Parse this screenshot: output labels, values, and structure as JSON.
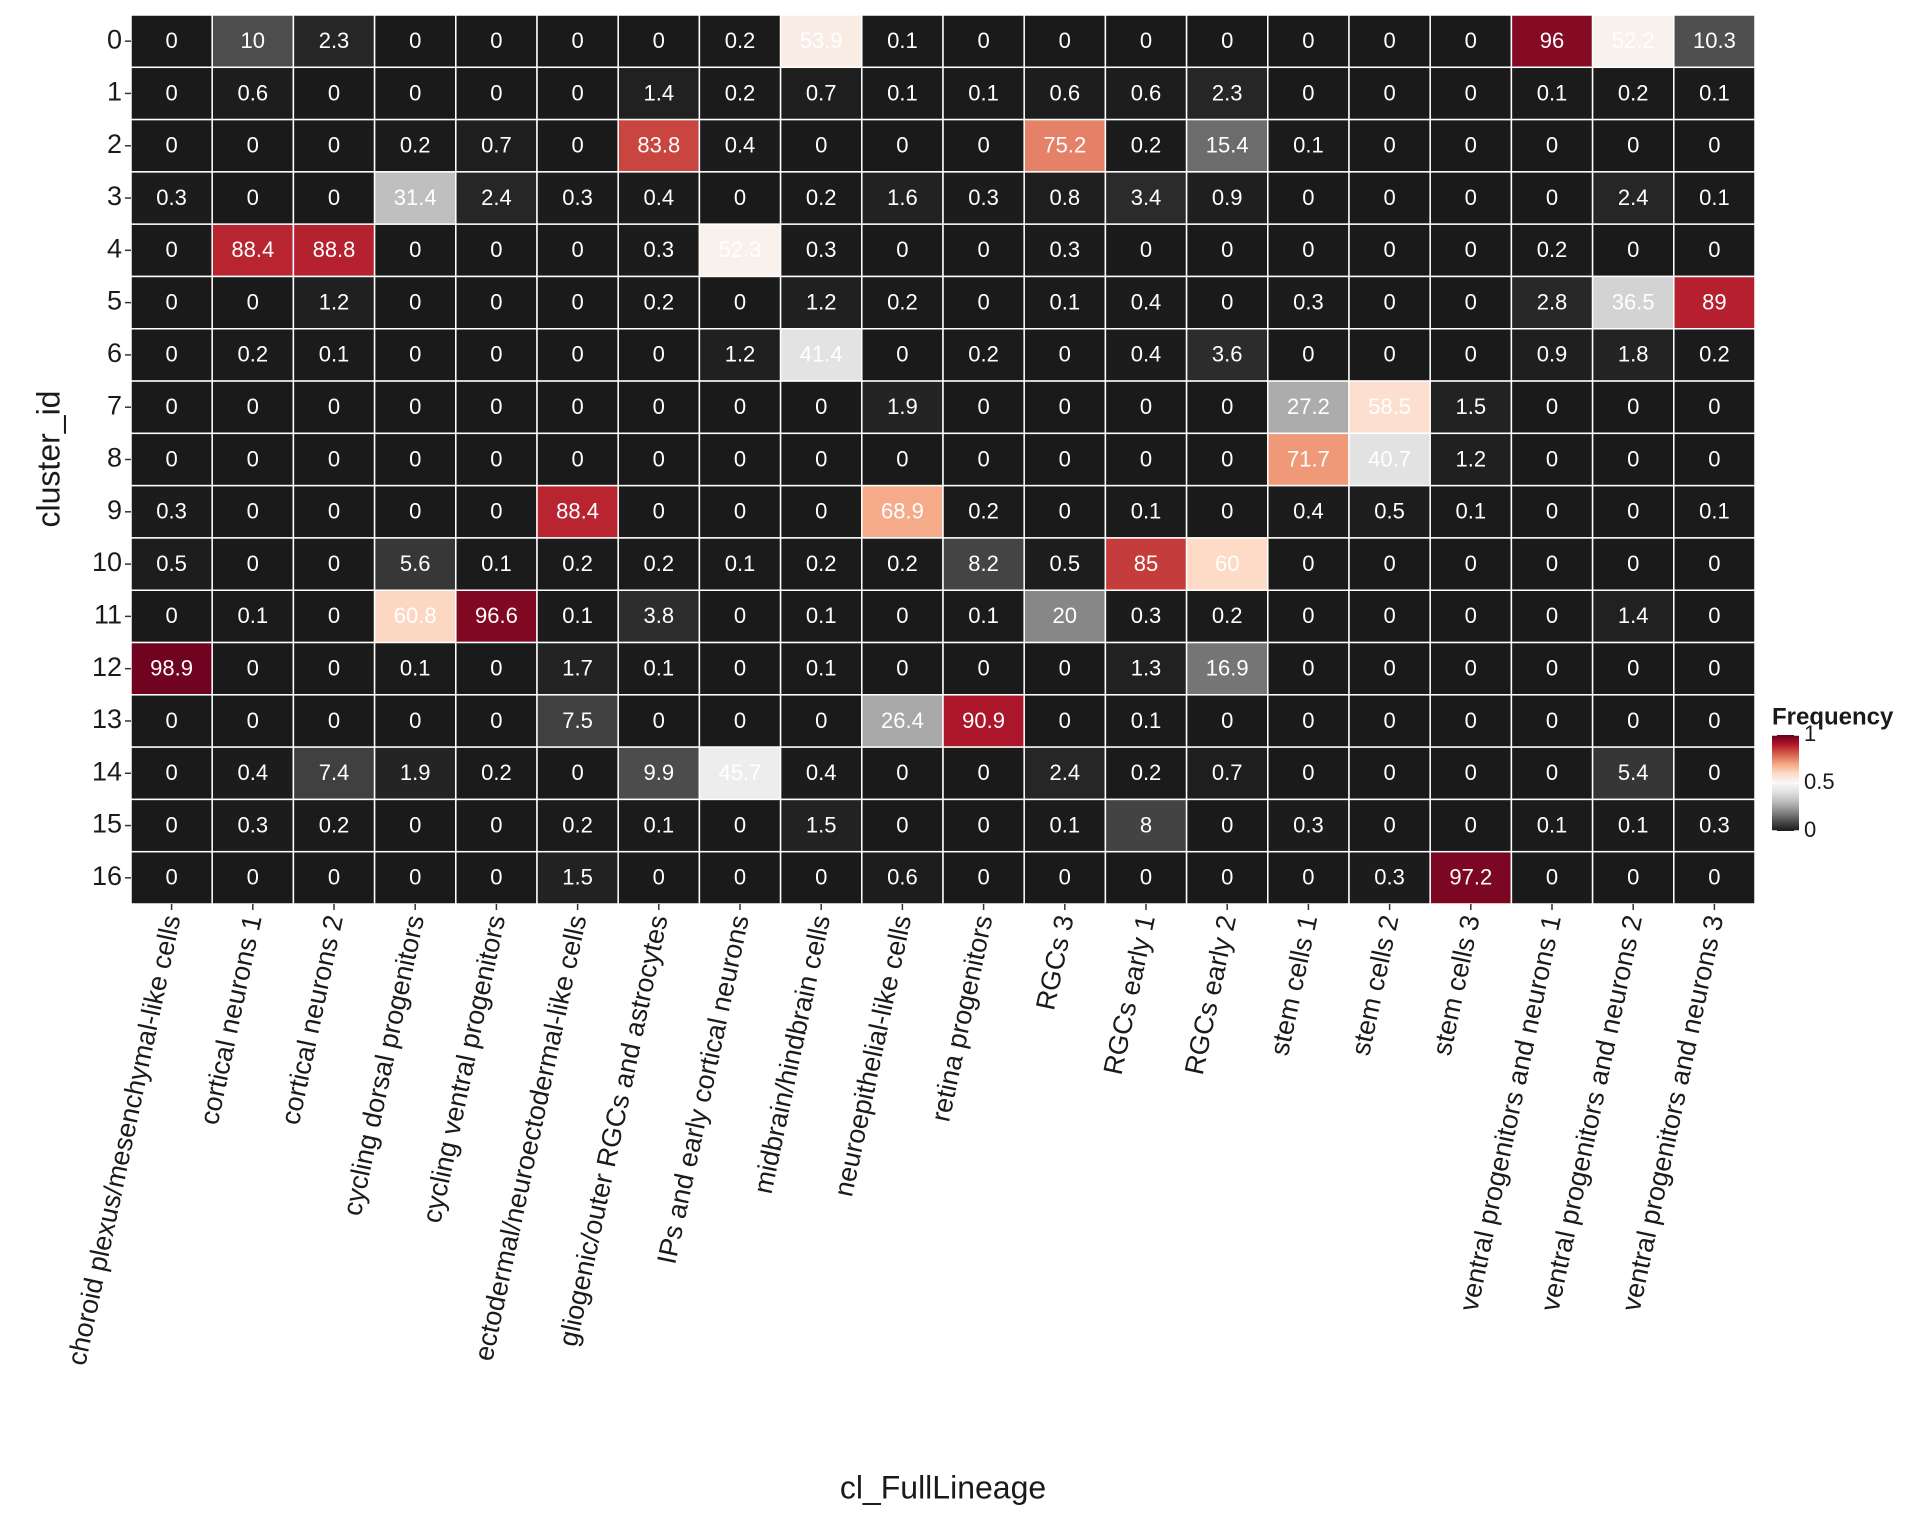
{
  "chart_data": {
    "type": "heatmap",
    "xlabel": "cl_FullLineage",
    "ylabel": "cluster_id",
    "x_categories": [
      "choroid plexus/mesenchymal-like cells",
      "cortical neurons 1",
      "cortical neurons 2",
      "cycling dorsal progenitors",
      "cycling ventral progenitors",
      "ectodermal/neuroectodermal-like cells",
      "gliogenic/outer RGCs and astrocytes",
      "IPs and early cortical neurons",
      "midbrain/hindbrain cells",
      "neuroepithelial-like cells",
      "retina progenitors",
      "RGCs 3",
      "RGCs early 1",
      "RGCs early 2",
      "stem cells 1",
      "stem cells 2",
      "stem cells 3",
      "ventral progenitors and neurons 1",
      "ventral progenitors and neurons 2",
      "ventral progenitors and neurons 3"
    ],
    "y_categories": [
      "0",
      "1",
      "2",
      "3",
      "4",
      "5",
      "6",
      "7",
      "8",
      "9",
      "10",
      "11",
      "12",
      "13",
      "14",
      "15",
      "16"
    ],
    "values": [
      [
        0,
        10,
        2.3,
        0,
        0,
        0,
        0,
        0.2,
        53.9,
        0.1,
        0,
        0,
        0,
        0,
        0,
        0,
        0,
        96,
        52.2,
        10.3
      ],
      [
        0,
        0.6,
        0,
        0,
        0,
        0,
        1.4,
        0.2,
        0.7,
        0.1,
        0.1,
        0.6,
        0.6,
        2.3,
        0,
        0,
        0,
        0.1,
        0.2,
        0.1
      ],
      [
        0,
        0,
        0,
        0.2,
        0.7,
        0,
        83.8,
        0.4,
        0,
        0,
        0,
        75.2,
        0.2,
        15.4,
        0.1,
        0,
        0,
        0,
        0,
        0
      ],
      [
        0.3,
        0,
        0,
        31.4,
        2.4,
        0.3,
        0.4,
        0,
        0.2,
        1.6,
        0.3,
        0.8,
        3.4,
        0.9,
        0,
        0,
        0,
        0,
        2.4,
        0.1
      ],
      [
        0,
        88.4,
        88.8,
        0,
        0,
        0,
        0.3,
        52.3,
        0.3,
        0,
        0,
        0.3,
        0,
        0,
        0,
        0,
        0,
        0.2,
        0,
        0
      ],
      [
        0,
        0,
        1.2,
        0,
        0,
        0,
        0.2,
        0,
        1.2,
        0.2,
        0,
        0.1,
        0.4,
        0,
        0.3,
        0,
        0,
        2.8,
        36.5,
        89
      ],
      [
        0,
        0.2,
        0.1,
        0,
        0,
        0,
        0,
        1.2,
        41.4,
        0,
        0.2,
        0,
        0.4,
        3.6,
        0,
        0,
        0,
        0.9,
        1.8,
        0.2
      ],
      [
        0,
        0,
        0,
        0,
        0,
        0,
        0,
        0,
        0,
        1.9,
        0,
        0,
        0,
        0,
        27.2,
        58.5,
        1.5,
        0,
        0,
        0
      ],
      [
        0,
        0,
        0,
        0,
        0,
        0,
        0,
        0,
        0,
        0,
        0,
        0,
        0,
        0,
        71.7,
        40.7,
        1.2,
        0,
        0,
        0
      ],
      [
        0.3,
        0,
        0,
        0,
        0,
        88.4,
        0,
        0,
        0,
        68.9,
        0.2,
        0,
        0.1,
        0,
        0.4,
        0.5,
        0.1,
        0,
        0,
        0.1
      ],
      [
        0.5,
        0,
        0,
        5.6,
        0.1,
        0.2,
        0.2,
        0.1,
        0.2,
        0.2,
        8.2,
        0.5,
        85,
        60,
        0,
        0,
        0,
        0,
        0,
        0
      ],
      [
        0,
        0.1,
        0,
        60.8,
        96.6,
        0.1,
        3.8,
        0,
        0.1,
        0,
        0.1,
        20,
        0.3,
        0.2,
        0,
        0,
        0,
        0,
        1.4,
        0
      ],
      [
        98.9,
        0,
        0,
        0.1,
        0,
        1.7,
        0.1,
        0,
        0.1,
        0,
        0,
        0,
        1.3,
        16.9,
        0,
        0,
        0,
        0,
        0,
        0
      ],
      [
        0,
        0,
        0,
        0,
        0,
        7.5,
        0,
        0,
        0,
        26.4,
        90.9,
        0,
        0.1,
        0,
        0,
        0,
        0,
        0,
        0,
        0
      ],
      [
        0,
        0.4,
        7.4,
        1.9,
        0.2,
        0,
        9.9,
        45.7,
        0.4,
        0,
        0,
        2.4,
        0.2,
        0.7,
        0,
        0,
        0,
        0,
        5.4,
        0
      ],
      [
        0,
        0.3,
        0.2,
        0,
        0,
        0.2,
        0.1,
        0,
        1.5,
        0,
        0,
        0.1,
        8,
        0,
        0.3,
        0,
        0,
        0.1,
        0.1,
        0.3
      ],
      [
        0,
        0,
        0,
        0,
        0,
        1.5,
        0,
        0,
        0,
        0.6,
        0,
        0,
        0,
        0,
        0,
        0.3,
        97.2,
        0,
        0,
        0
      ]
    ],
    "color_scale": {
      "title": "Frequency",
      "lim": [
        0,
        100
      ],
      "ticks": [
        0,
        {
          "value": 50,
          "label": "0.5"
        },
        {
          "value": 100,
          "label": "1"
        }
      ],
      "colors": [
        "#1a1a1a",
        "#4d4d4d",
        "#878787",
        "#bababa",
        "#e0e0e0",
        "#f7f7f7",
        "#fddbc7",
        "#f4a582",
        "#d6604d",
        "#b2182b",
        "#67001f"
      ]
    }
  }
}
